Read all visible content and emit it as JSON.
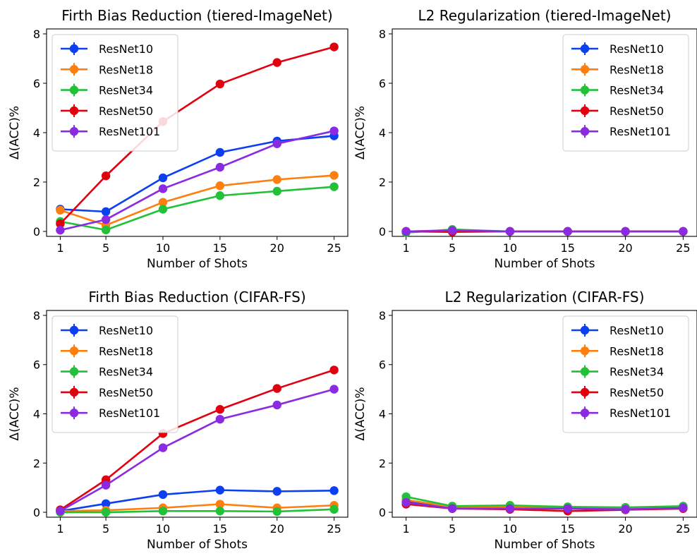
{
  "series_colors": {
    "ResNet10": "#0b3ff0",
    "ResNet18": "#ff7f0e",
    "ResNet34": "#21c138",
    "ResNet50": "#e3000e",
    "ResNet101": "#8a2be2"
  },
  "chart_data": [
    {
      "type": "line",
      "title": "Firth Bias Reduction (tiered-ImageNet)",
      "xlabel": "Number of Shots",
      "ylabel": "Δ(ACC)%",
      "x": [
        1,
        5,
        10,
        15,
        20,
        25
      ],
      "xticks": [
        "1",
        "5",
        "10",
        "15",
        "20",
        "25"
      ],
      "ylim": [
        0,
        8
      ],
      "yticks": [
        "0",
        "2",
        "4",
        "6",
        "8"
      ],
      "grid": false,
      "legend": "upper-left",
      "series": [
        {
          "name": "ResNet10",
          "values": [
            0.9,
            0.8,
            2.17,
            3.2,
            3.66,
            3.87
          ]
        },
        {
          "name": "ResNet18",
          "values": [
            0.86,
            0.25,
            1.18,
            1.85,
            2.1,
            2.27
          ]
        },
        {
          "name": "ResNet34",
          "values": [
            0.4,
            0.06,
            0.9,
            1.45,
            1.63,
            1.81
          ]
        },
        {
          "name": "ResNet50",
          "values": [
            0.31,
            2.25,
            4.45,
            5.97,
            6.84,
            7.47
          ]
        },
        {
          "name": "ResNet101",
          "values": [
            0.05,
            0.48,
            1.73,
            2.6,
            3.55,
            4.07
          ]
        }
      ]
    },
    {
      "type": "line",
      "title": "L2 Regularization (tiered-ImageNet)",
      "xlabel": "Number of Shots",
      "ylabel": "Δ(ACC)%",
      "x": [
        1,
        5,
        10,
        15,
        20,
        25
      ],
      "xticks": [
        "1",
        "5",
        "10",
        "15",
        "20",
        "25"
      ],
      "ylim": [
        0,
        8
      ],
      "yticks": [
        "0",
        "2",
        "4",
        "6",
        "8"
      ],
      "grid": false,
      "legend": "upper-right",
      "series": [
        {
          "name": "ResNet10",
          "values": [
            0.0,
            0.02,
            0.0,
            0.0,
            0.0,
            0.0
          ]
        },
        {
          "name": "ResNet18",
          "values": [
            0.0,
            0.05,
            0.0,
            0.0,
            0.0,
            0.0
          ]
        },
        {
          "name": "ResNet34",
          "values": [
            -0.05,
            0.08,
            0.0,
            0.0,
            0.0,
            0.0
          ]
        },
        {
          "name": "ResNet50",
          "values": [
            0.0,
            -0.02,
            0.0,
            0.0,
            0.0,
            0.0
          ]
        },
        {
          "name": "ResNet101",
          "values": [
            0.0,
            0.04,
            0.0,
            0.0,
            0.0,
            0.0
          ]
        }
      ]
    },
    {
      "type": "line",
      "title": "Firth Bias Reduction (CIFAR-FS)",
      "xlabel": "Number of Shots",
      "ylabel": "Δ(ACC)%",
      "x": [
        1,
        5,
        10,
        15,
        20,
        25
      ],
      "xticks": [
        "1",
        "5",
        "10",
        "15",
        "20",
        "25"
      ],
      "ylim": [
        0,
        8
      ],
      "yticks": [
        "0",
        "2",
        "4",
        "6",
        "8"
      ],
      "grid": false,
      "legend": "upper-left",
      "series": [
        {
          "name": "ResNet10",
          "values": [
            0.05,
            0.35,
            0.72,
            0.9,
            0.85,
            0.88
          ]
        },
        {
          "name": "ResNet18",
          "values": [
            0.05,
            0.08,
            0.18,
            0.33,
            0.18,
            0.28
          ]
        },
        {
          "name": "ResNet34",
          "values": [
            0.0,
            0.0,
            0.05,
            0.05,
            0.03,
            0.12
          ]
        },
        {
          "name": "ResNet50",
          "values": [
            0.1,
            1.32,
            3.2,
            4.18,
            5.03,
            5.78
          ]
        },
        {
          "name": "ResNet101",
          "values": [
            0.05,
            1.1,
            2.62,
            3.78,
            4.36,
            5.0
          ]
        }
      ]
    },
    {
      "type": "line",
      "title": "L2 Regularization (CIFAR-FS)",
      "xlabel": "Number of Shots",
      "ylabel": "Δ(ACC)%",
      "x": [
        1,
        5,
        10,
        15,
        20,
        25
      ],
      "xticks": [
        "1",
        "5",
        "10",
        "15",
        "20",
        "25"
      ],
      "ylim": [
        0,
        8
      ],
      "yticks": [
        "0",
        "2",
        "4",
        "6",
        "8"
      ],
      "grid": false,
      "legend": "upper-right",
      "series": [
        {
          "name": "ResNet10",
          "values": [
            0.45,
            0.2,
            0.2,
            0.15,
            0.15,
            0.2
          ]
        },
        {
          "name": "ResNet18",
          "values": [
            0.5,
            0.22,
            0.22,
            0.18,
            0.15,
            0.2
          ]
        },
        {
          "name": "ResNet34",
          "values": [
            0.63,
            0.25,
            0.28,
            0.22,
            0.2,
            0.25
          ]
        },
        {
          "name": "ResNet50",
          "values": [
            0.33,
            0.15,
            0.12,
            0.05,
            0.1,
            0.15
          ]
        },
        {
          "name": "ResNet101",
          "values": [
            0.4,
            0.15,
            0.15,
            0.15,
            0.12,
            0.18
          ]
        }
      ]
    }
  ]
}
